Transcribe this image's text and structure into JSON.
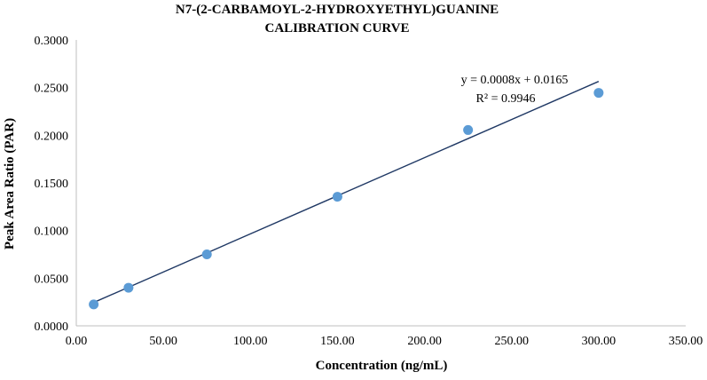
{
  "chart_data": {
    "type": "scatter",
    "title": "N7-(2-CARBAMOYL-2-HYDROXYETHYL)GUANINE",
    "subtitle": "CALIBRATION CURVE",
    "xlabel": "Concentration (ng/mL)",
    "ylabel": "Peak Area Ratio (PAR)",
    "xlim": [
      0,
      350
    ],
    "ylim": [
      0,
      0.3
    ],
    "x_ticks": [
      0,
      50,
      100,
      150,
      200,
      250,
      300,
      350
    ],
    "y_ticks": [
      0,
      0.05,
      0.1,
      0.15,
      0.2,
      0.25,
      0.3
    ],
    "x_tick_labels": [
      "0.00",
      "50.00",
      "100.00",
      "150.00",
      "200.00",
      "250.00",
      "300.00",
      "350.00"
    ],
    "y_tick_labels": [
      "0.0000",
      "0.0500",
      "0.1000",
      "0.1500",
      "0.2000",
      "0.2500",
      "0.3000"
    ],
    "grid": false,
    "legend": "none",
    "series": [
      {
        "x": [
          10,
          30,
          75,
          150,
          225,
          300
        ],
        "y": [
          0.0225,
          0.04,
          0.075,
          0.1355,
          0.2055,
          0.2445
        ],
        "color": "#5B9BD5"
      }
    ],
    "trendline": {
      "type": "linear",
      "slope": 0.0008,
      "intercept": 0.0165,
      "x_range": [
        10,
        300
      ],
      "color": "#1F3864"
    },
    "annotations": {
      "equation": "y = 0.0008x + 0.0165",
      "r_squared": "R² = 0.9946"
    }
  }
}
